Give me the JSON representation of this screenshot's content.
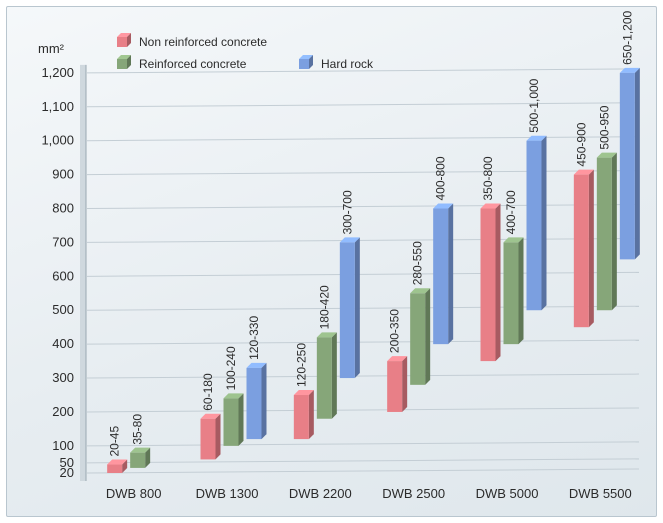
{
  "chart_data": {
    "type": "bar",
    "subtype": "floating-range",
    "yunit": "mm²",
    "ylim": [
      20,
      1200
    ],
    "yticks": [
      20,
      50,
      100,
      200,
      300,
      400,
      500,
      600,
      700,
      800,
      900,
      1000,
      1100,
      1200
    ],
    "ytick_labels": [
      "20",
      "50",
      "100",
      "200",
      "300",
      "400",
      "500",
      "600",
      "700",
      "800",
      "900",
      "1,000",
      "1,100",
      "1,200"
    ],
    "grid": true,
    "legend_position": "top-left",
    "categories": [
      "DWB 800",
      "DWB 1300",
      "DWB 2200",
      "DWB 2500",
      "DWB 5000",
      "DWB 5500"
    ],
    "series": [
      {
        "name": "Non reinforced concrete",
        "color": "#e87f87",
        "ranges": [
          [
            20,
            45
          ],
          [
            60,
            180
          ],
          [
            120,
            250
          ],
          [
            200,
            350
          ],
          [
            350,
            800
          ],
          [
            450,
            900
          ]
        ],
        "labels": [
          "20-45",
          "60-180",
          "120-250",
          "200-350",
          "350-800",
          "450-900"
        ]
      },
      {
        "name": "Reinforced concrete",
        "color": "#86a679",
        "ranges": [
          [
            35,
            80
          ],
          [
            100,
            240
          ],
          [
            180,
            420
          ],
          [
            280,
            550
          ],
          [
            400,
            700
          ],
          [
            500,
            950
          ]
        ],
        "labels": [
          "35-80",
          "100-240",
          "180-420",
          "280-550",
          "400-700",
          "500-950"
        ]
      },
      {
        "name": "Hard rock",
        "color": "#7b9fe0",
        "ranges": [
          null,
          [
            120,
            330
          ],
          [
            300,
            700
          ],
          [
            400,
            800
          ],
          [
            500,
            1000
          ],
          [
            650,
            1200
          ]
        ],
        "labels": [
          "",
          "120-330",
          "300-700",
          "400-800",
          "500-1,000",
          "650-1,200"
        ]
      }
    ]
  }
}
